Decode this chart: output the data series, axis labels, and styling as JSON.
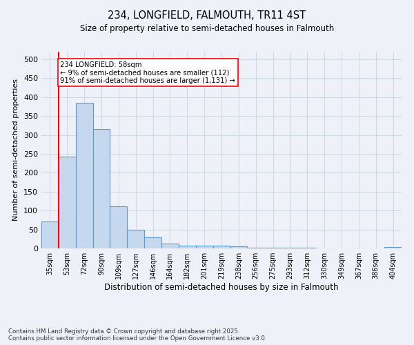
{
  "title1": "234, LONGFIELD, FALMOUTH, TR11 4ST",
  "title2": "Size of property relative to semi-detached houses in Falmouth",
  "xlabel": "Distribution of semi-detached houses by size in Falmouth",
  "ylabel": "Number of semi-detached properties",
  "categories": [
    "35sqm",
    "53sqm",
    "72sqm",
    "90sqm",
    "109sqm",
    "127sqm",
    "146sqm",
    "164sqm",
    "182sqm",
    "201sqm",
    "219sqm",
    "238sqm",
    "256sqm",
    "275sqm",
    "293sqm",
    "312sqm",
    "330sqm",
    "349sqm",
    "367sqm",
    "386sqm",
    "404sqm"
  ],
  "values": [
    72,
    243,
    385,
    315,
    112,
    50,
    29,
    13,
    7,
    7,
    8,
    5,
    2,
    1,
    1,
    1,
    0,
    0,
    0,
    0,
    3
  ],
  "bar_color": "#c5d8ed",
  "bar_edge_color": "#5b9bd5",
  "grid_color": "#d0d8e8",
  "background_color": "#eef2f8",
  "vline_color": "red",
  "annotation_text": "234 LONGFIELD: 58sqm\n← 9% of semi-detached houses are smaller (112)\n91% of semi-detached houses are larger (1,131) →",
  "annotation_box_color": "white",
  "annotation_box_edge": "red",
  "footnote1": "Contains HM Land Registry data © Crown copyright and database right 2025.",
  "footnote2": "Contains public sector information licensed under the Open Government Licence v3.0.",
  "ylim": [
    0,
    520
  ],
  "yticks": [
    0,
    50,
    100,
    150,
    200,
    250,
    300,
    350,
    400,
    450,
    500
  ]
}
